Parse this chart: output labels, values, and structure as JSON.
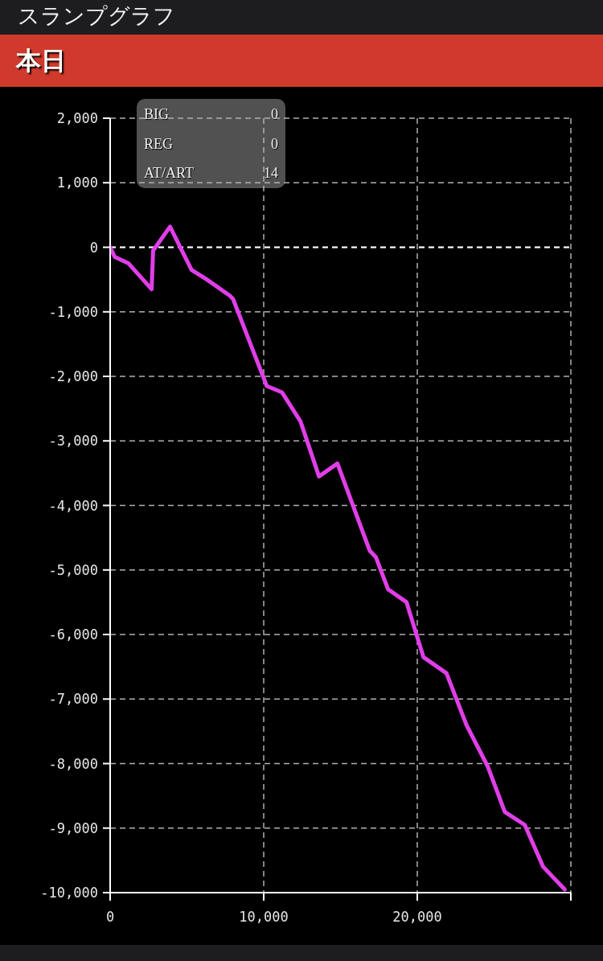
{
  "chart_data": {
    "type": "line",
    "title": "スランプグラフ",
    "subtitle": "本日",
    "annotations": [
      "BIG",
      "0",
      "REG",
      "0",
      "AT/ART",
      "14"
    ],
    "x": [
      0,
      300,
      1200,
      2700,
      2800,
      3900,
      5300,
      6300,
      7800,
      8000,
      10200,
      11200,
      12400,
      13600,
      14800,
      16900,
      17300,
      18100,
      19300,
      20400,
      21900,
      23200,
      24600,
      25700,
      27000,
      28200,
      29600
    ],
    "series": [
      {
        "color": "#e03ee8",
        "values": [
          0,
          -150,
          -250,
          -650,
          -50,
          320,
          -350,
          -500,
          -750,
          -800,
          -2150,
          -2250,
          -2700,
          -3550,
          -3350,
          -4700,
          -4800,
          -5300,
          -5500,
          -6350,
          -6600,
          -7400,
          -8050,
          -8750,
          -8950,
          -9600,
          -9950
        ]
      }
    ],
    "xlim": [
      0,
      30000
    ],
    "xticks": [
      {
        "value": 0,
        "label": "0"
      },
      {
        "value": 10000,
        "label": "10,000"
      },
      {
        "value": 20000,
        "label": "20,000"
      },
      {
        "value": 30000,
        "label": null
      }
    ],
    "ylim": [
      -10000,
      2000
    ],
    "yticks": [
      {
        "value": 2000,
        "label": "2,000"
      },
      {
        "value": 1000,
        "label": "1,000"
      },
      {
        "value": 0,
        "label": "0"
      },
      {
        "value": -1000,
        "label": "-1,000"
      },
      {
        "value": -2000,
        "label": "-2,000"
      },
      {
        "value": -3000,
        "label": "-3,000"
      },
      {
        "value": -4000,
        "label": "-4,000"
      },
      {
        "value": -5000,
        "label": "-5,000"
      },
      {
        "value": -6000,
        "label": "-6,000"
      },
      {
        "value": -7000,
        "label": "-7,000"
      },
      {
        "value": -8000,
        "label": "-8,000"
      },
      {
        "value": -9000,
        "label": "-9,000"
      },
      {
        "value": -10000,
        "label": "-10,000"
      }
    ],
    "grid": true,
    "marker": "none",
    "ref_lines": [
      {
        "axis": "y",
        "value": 0,
        "color": "#ffffff",
        "line_style": "dashed"
      }
    ]
  }
}
